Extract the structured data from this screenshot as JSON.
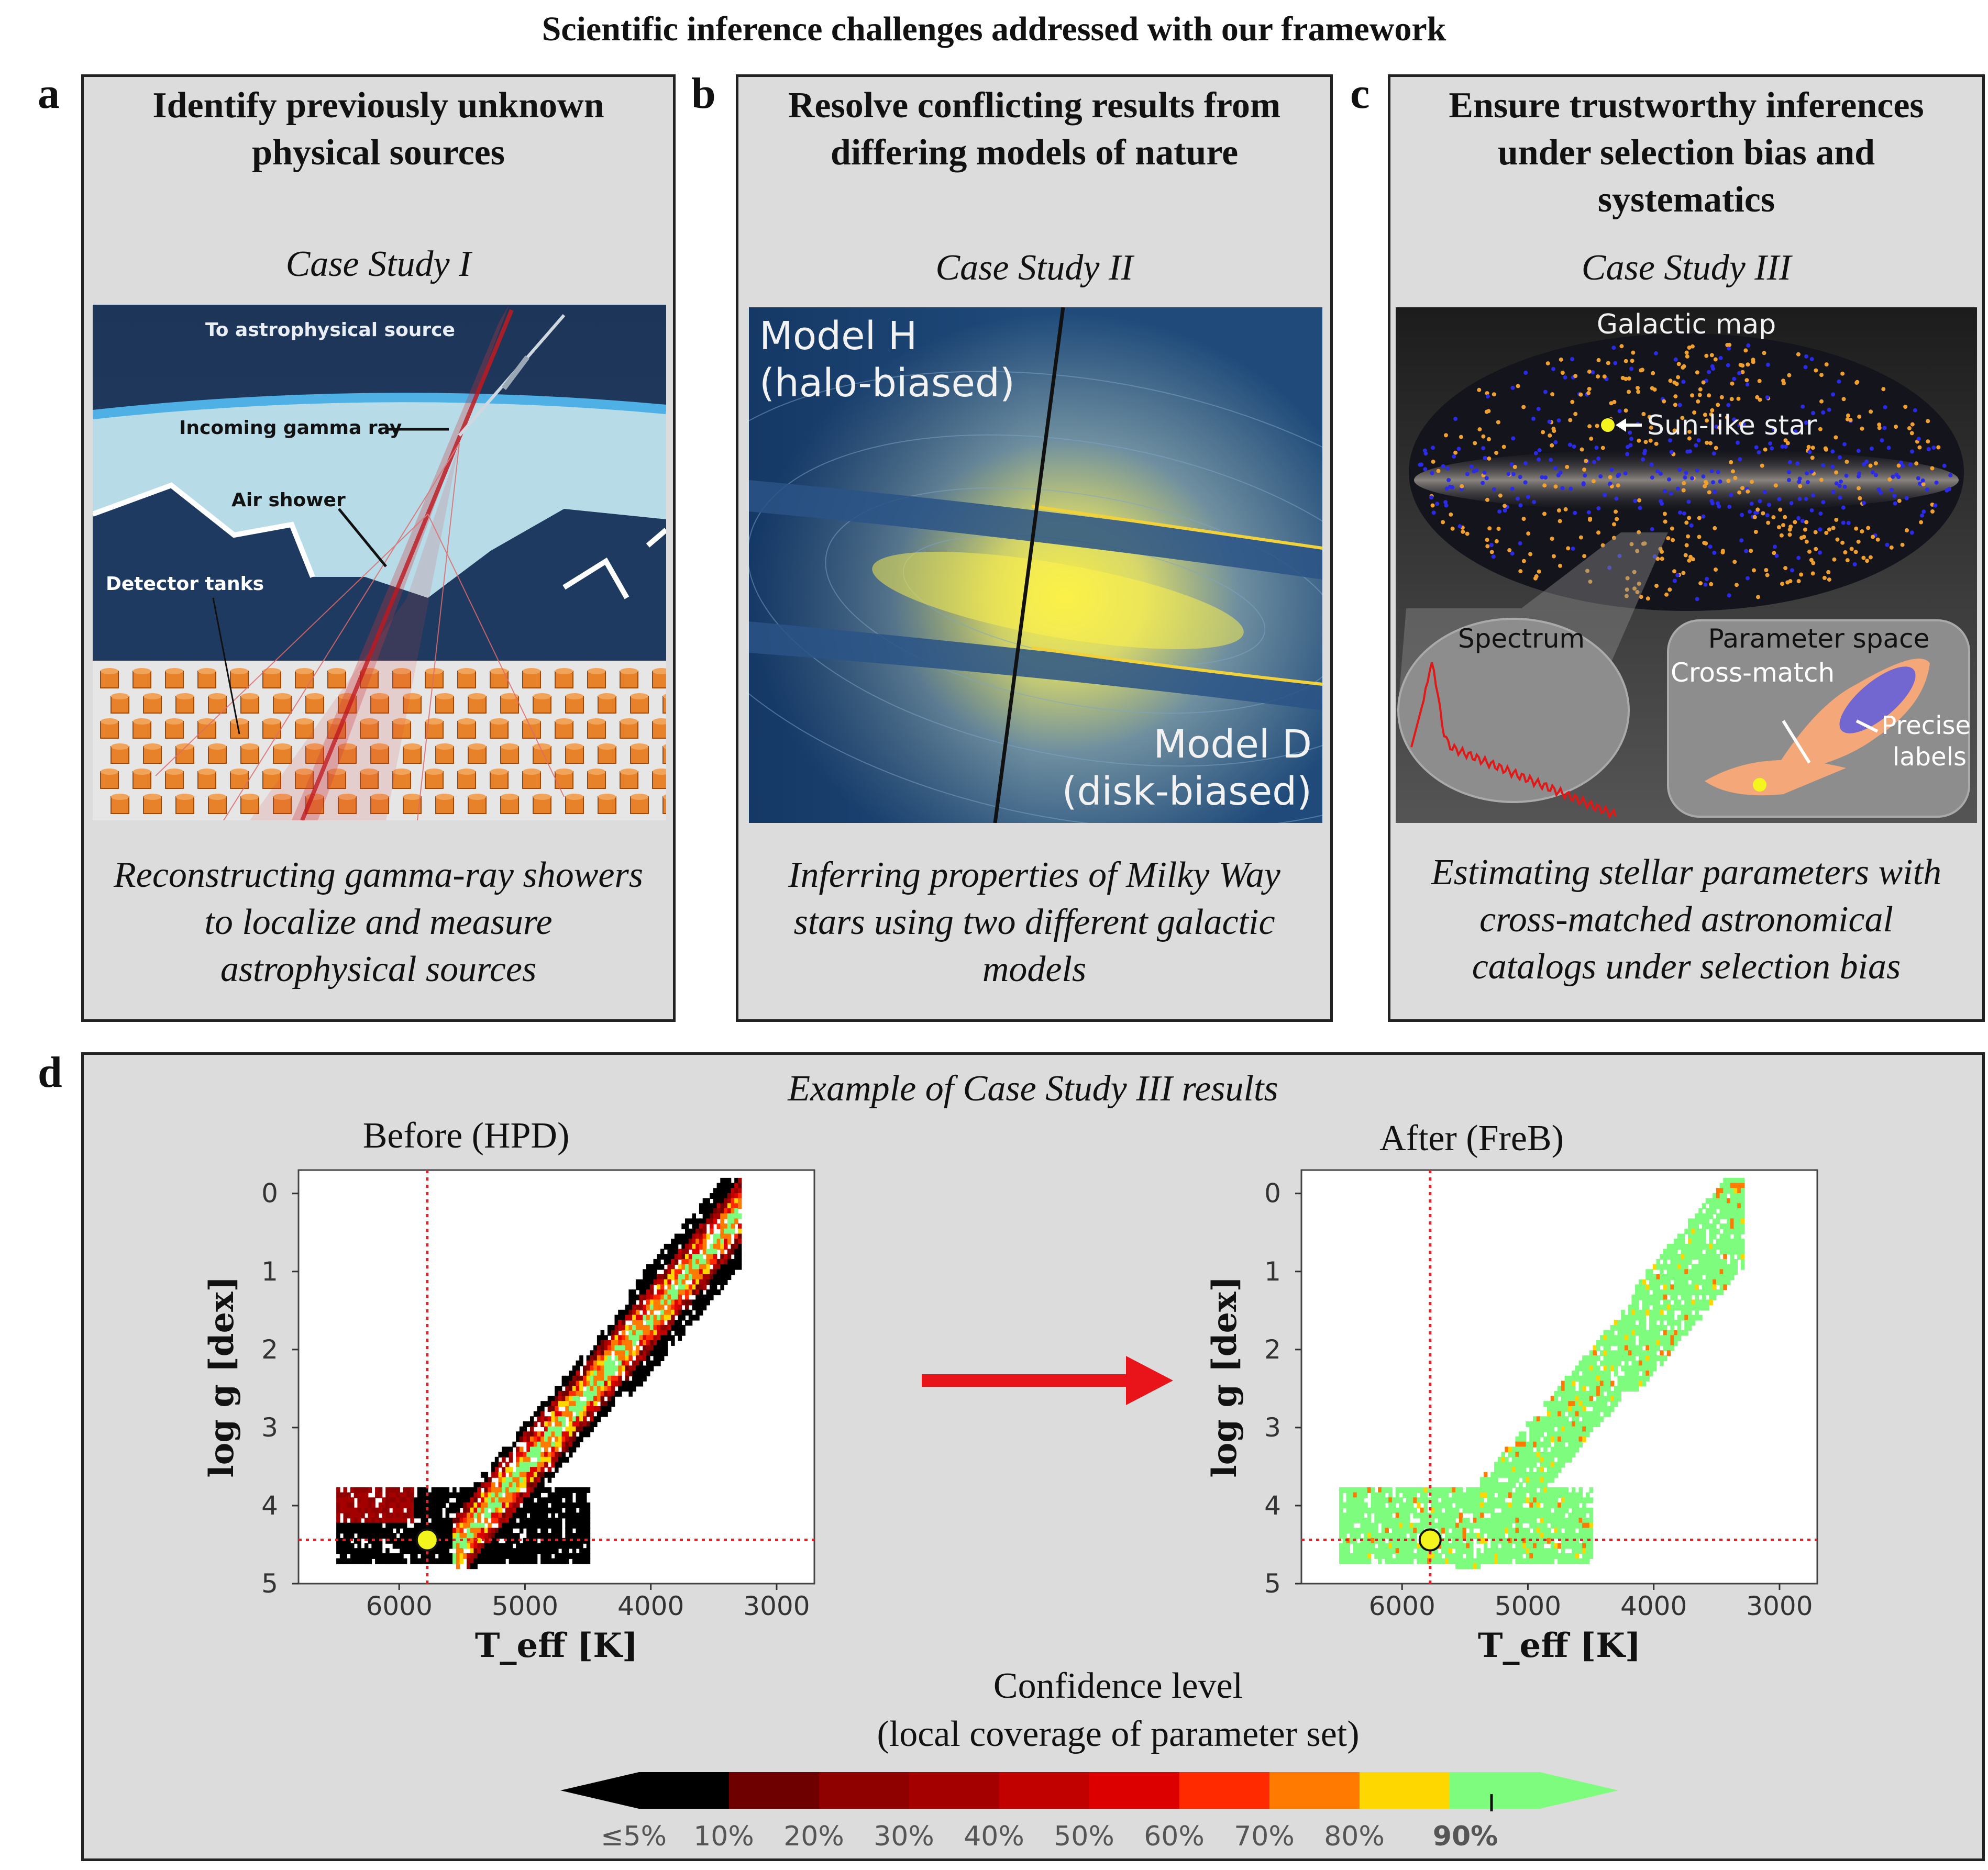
{
  "figure_title": "Scientific inference challenges addressed with our framework",
  "panels": [
    {
      "letter": "a",
      "title_lines": [
        "Identify previously unknown",
        "physical sources"
      ],
      "case_study": "Case Study I",
      "image_labels": {
        "source": "To astrophysical source",
        "gamma": "Incoming gamma ray",
        "shower": "Air shower",
        "tanks": "Detector tanks"
      },
      "caption_lines": [
        "Reconstructing gamma-ray showers",
        "to localize and measure",
        "astrophysical sources"
      ]
    },
    {
      "letter": "b",
      "title_lines": [
        "Resolve conflicting results from",
        "differing models of nature"
      ],
      "case_study": "Case Study II",
      "image_labels": {
        "model_h_1": "Model H",
        "model_h_2": "(halo-biased)",
        "model_d_1": "Model D",
        "model_d_2": "(disk-biased)"
      },
      "caption_lines": [
        "Inferring properties of Milky Way",
        "stars using two different galactic",
        "models"
      ]
    },
    {
      "letter": "c",
      "title_lines": [
        "Ensure trustworthy inferences",
        "under selection bias and",
        "systematics"
      ],
      "case_study": "Case Study III",
      "image_labels": {
        "map": "Galactic map",
        "sun": "Sun-like star",
        "spectrum": "Spectrum",
        "param": "Parameter space",
        "cross": "Cross-match",
        "precise_1": "Precise",
        "precise_2": "labels"
      },
      "caption_lines": [
        "Estimating stellar parameters with",
        "cross-matched astronomical",
        "catalogs under selection bias"
      ]
    }
  ],
  "panel_d": {
    "letter": "d",
    "subtitle": "Example of Case Study III results",
    "before_title": "Before (HPD)",
    "after_title": "After (FreB)",
    "colorbar_title_1": "Confidence level",
    "colorbar_title_2": "(local coverage of parameter set)",
    "colors": {
      "arrow": "#e8141a",
      "marker": "#f5f51e",
      "crosshair": "#e0242a",
      "green": "#7dfc7d"
    }
  },
  "chart_data": [
    {
      "type": "heatmap",
      "title": "Before (HPD)",
      "xlabel": "T_eff [K]",
      "ylabel": "log g [dex]",
      "xlim": [
        6800,
        2700
      ],
      "ylim": [
        5,
        -0.3
      ],
      "xticks": [
        "6000",
        "5000",
        "4000",
        "3000"
      ],
      "yticks": [
        "0",
        "1",
        "2",
        "3",
        "4",
        "5"
      ],
      "reference_star": {
        "teff": 5777,
        "logg": 4.44
      },
      "dominant_levels": [
        "≤5%",
        "10%-40%",
        "50%-80%",
        "90%"
      ]
    },
    {
      "type": "heatmap",
      "title": "After (FreB)",
      "xlabel": "T_eff [K]",
      "ylabel": "log g [dex]",
      "xlim": [
        6800,
        2700
      ],
      "ylim": [
        5,
        -0.3
      ],
      "xticks": [
        "6000",
        "5000",
        "4000",
        "3000"
      ],
      "yticks": [
        "0",
        "1",
        "2",
        "3",
        "4",
        "5"
      ],
      "reference_star": {
        "teff": 5777,
        "logg": 4.44
      },
      "dominant_levels": [
        "90%"
      ]
    },
    {
      "type": "colorbar",
      "labels": [
        "≤5%",
        "10%",
        "20%",
        "30%",
        "40%",
        "50%",
        "60%",
        "70%",
        "80%",
        "90%"
      ],
      "colors": [
        "#000000",
        "#6e0000",
        "#8f0000",
        "#a50000",
        "#c10000",
        "#dd0000",
        "#ff2a00",
        "#ff7a00",
        "#ffd700",
        "#7dfc7d"
      ]
    }
  ]
}
